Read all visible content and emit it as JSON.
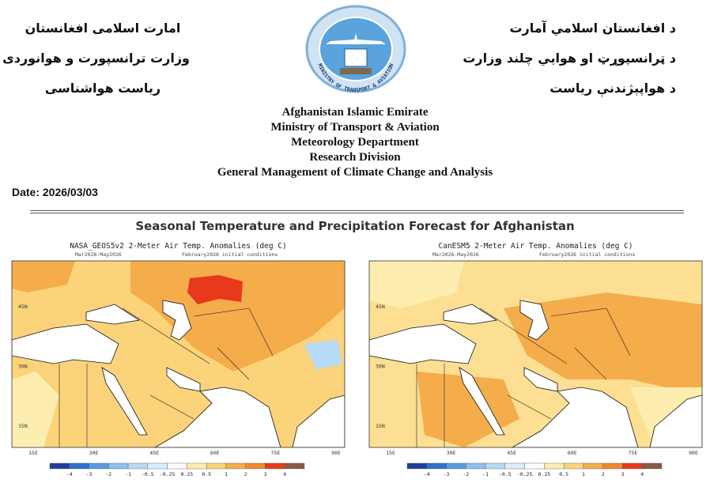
{
  "header": {
    "left_lines": [
      "امارت اسلامی افغانستان",
      "وزارت ترانسپورت و هوانوردی",
      "ریاست هواشناسی"
    ],
    "right_lines": [
      "د افغانستان اسلامي آمارت",
      "د ټرانسپوړټ او هوايي چلند وزارت",
      "د هواپېژندنې رياست"
    ],
    "logo_text": "MINISTRY OF TRANSPORT & AVIATION"
  },
  "english_lines": [
    "Afghanistan Islamic Emirate",
    "Ministry of Transport & Aviation",
    "Meteorology Department",
    "Research Division",
    "General Management of Climate Change and Analysis"
  ],
  "date": "Date: 2026/03/03",
  "section_title": "Seasonal Temperature and Precipitation Forecast for Afghanistan",
  "colorbar_colors": [
    "#1f3f9e",
    "#2f6fd0",
    "#5a9ae0",
    "#8cc0ef",
    "#b7daf6",
    "#dcedfb",
    "#ffffff",
    "#fdeeb0",
    "#fbd37a",
    "#f5ac4a",
    "#ef8a2a",
    "#e8391c",
    "#8a5a44"
  ],
  "maps": [
    {
      "title": "NASA_GEOS5v2 2-Meter Air Temp. Anomalies (deg C)",
      "period": "Mar2026-May2026",
      "conditions": "February2026 initial conditions",
      "lat_labels": [
        "45N",
        "30N",
        "15N"
      ],
      "lon_labels": [
        "15E",
        "30E",
        "45E",
        "60E",
        "75E",
        "90E"
      ],
      "colorbar_labels": [
        "-4",
        "-3",
        "-2",
        "-1",
        "-0.5",
        "-0.25",
        "0.25",
        "0.5",
        "1",
        "2",
        "3",
        "4"
      ]
    },
    {
      "title": "CanESM5 2-Meter Air Temp. Anomalies (deg C)",
      "period": "Mar2026-May2026",
      "conditions": "February2026 initial conditions",
      "lat_labels": [
        "45N",
        "30N",
        "15N"
      ],
      "lon_labels": [
        "15E",
        "30E",
        "45E",
        "60E",
        "75E",
        "90E"
      ],
      "colorbar_labels": [
        "-4",
        "-3",
        "-2",
        "-1",
        "-0.5",
        "-0.25",
        "0.25",
        "0.5",
        "1",
        "2",
        "3",
        "4"
      ]
    }
  ]
}
